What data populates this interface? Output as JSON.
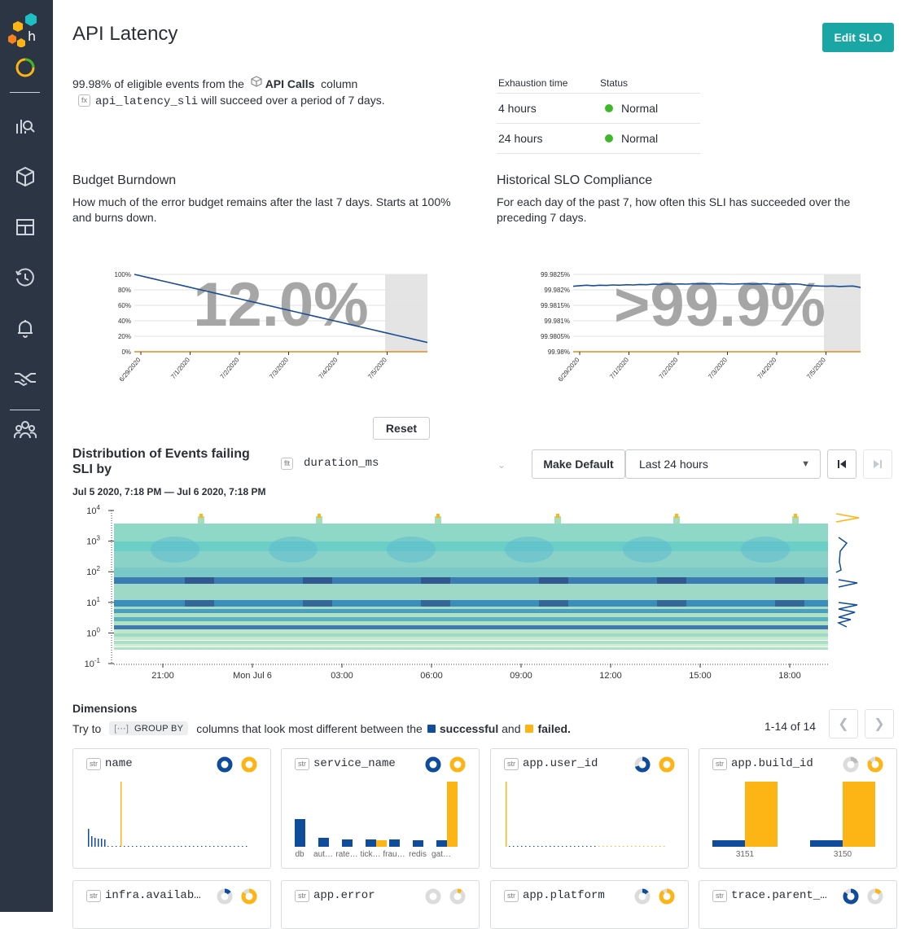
{
  "app": {
    "title": "API Latency",
    "edit_label": "Edit SLO"
  },
  "slo": {
    "pct": "99.98%",
    "text1": "of eligible events from the",
    "dataset": "API Calls",
    "text2": "column",
    "fx": "fx",
    "column": "api_latency_sli",
    "text3": "will succeed over a period of 7 days."
  },
  "exhaustion": {
    "col1": "Exhaustion time",
    "col2": "Status",
    "rows": [
      {
        "time": "4 hours",
        "status": "Normal"
      },
      {
        "time": "24 hours",
        "status": "Normal"
      }
    ],
    "status_color": "#3fb72a"
  },
  "burndown": {
    "title": "Budget Burndown",
    "desc": "How much of the error budget remains after the last 7 days. Starts at 100% and burns down."
  },
  "compliance": {
    "title": "Historical SLO Compliance",
    "desc": "For each day of the past 7, how often this SLI has succeeded over the preceding 7 days."
  },
  "chart_data": [
    {
      "type": "line",
      "big_value": "12.0%",
      "y_ticks": [
        "0%",
        "20%",
        "40%",
        "60%",
        "80%",
        "100%"
      ],
      "ylim": [
        0,
        100
      ],
      "x_ticks": [
        "6/29/2020",
        "7/1/2020",
        "7/2/2020",
        "7/3/2020",
        "7/4/2020",
        "7/5/2020"
      ],
      "series": [
        {
          "values": [
            100,
            98,
            96,
            94,
            92,
            90,
            88,
            86,
            84,
            82,
            80,
            78,
            76,
            74,
            72,
            70,
            68,
            66,
            64,
            62,
            60,
            58,
            56,
            54,
            52,
            50,
            48,
            46,
            44,
            42,
            40,
            38,
            36,
            34,
            32,
            30,
            28,
            26,
            24,
            22,
            20,
            18,
            16,
            14,
            12
          ]
        }
      ]
    },
    {
      "type": "line",
      "big_value": ">99.9%",
      "y_ticks": [
        "99.98%",
        "99.9805%",
        "99.981%",
        "99.9815%",
        "99.982%",
        "99.9825%"
      ],
      "ylim": [
        99.98,
        99.983
      ],
      "x_ticks": [
        "6/29/2020",
        "7/1/2020",
        "7/2/2020",
        "7/3/2020",
        "7/4/2020",
        "7/5/2020"
      ],
      "series": [
        {
          "values": [
            99.98254,
            99.98256,
            99.98258,
            99.98256,
            99.98258,
            99.98257,
            99.98259,
            99.98258,
            99.9826,
            99.98259,
            99.98261,
            99.9826,
            99.98262,
            99.98261,
            99.98263,
            99.98262,
            99.98263,
            99.98262,
            99.98264,
            99.98263,
            99.98264,
            99.98263,
            99.98264,
            99.98263,
            99.98262,
            99.98263,
            99.98264,
            99.98262,
            99.98263,
            99.98264,
            99.98262,
            99.98261,
            99.98262,
            99.98263,
            99.98262,
            99.98258,
            99.98256,
            99.98255,
            99.98254,
            99.98255,
            99.98253,
            99.98254,
            99.98255,
            99.9825,
            99.98244
          ]
        }
      ]
    },
    {
      "type": "heatmap",
      "y_ticks": [
        "10-1",
        "100",
        "101",
        "102",
        "103",
        "104"
      ],
      "x_ticks": [
        "21:00",
        "Mon Jul 6",
        "03:00",
        "06:00",
        "09:00",
        "12:00",
        "15:00",
        "18:00"
      ]
    }
  ],
  "reset_label": "Reset",
  "distribution": {
    "title": "Distribution of Events failing SLI by",
    "flt": "flt",
    "field": "duration_ms",
    "make_default": "Make Default",
    "range": "Last 24 hours",
    "date_range": "Jul 5 2020, 7:18 PM — Jul 6 2020, 7:18 PM"
  },
  "dimensions": {
    "title": "Dimensions",
    "try": "Try to",
    "group_by": "GROUP BY",
    "mid": "columns that look most different between the",
    "successful": "successful",
    "and": "and",
    "failed": "failed.",
    "pager": "1-14 of 14",
    "success_color": "#0f4c9c",
    "failed_color": "#fdb515",
    "cards": [
      {
        "type": "str",
        "name": "name",
        "labels": []
      },
      {
        "type": "str",
        "name": "service_name",
        "labels": [
          "db",
          "aut…",
          "rate…",
          "tick…",
          "frau…",
          "redis",
          "gat…"
        ]
      },
      {
        "type": "str",
        "name": "app.user_id",
        "labels": []
      },
      {
        "type": "str",
        "name": "app.build_id",
        "labels": [
          "3151",
          "3150"
        ]
      },
      {
        "type": "str",
        "name": "infra.availab…",
        "labels": []
      },
      {
        "type": "str",
        "name": "app.error",
        "labels": []
      },
      {
        "type": "str",
        "name": "app.platform",
        "labels": []
      },
      {
        "type": "str",
        "name": "trace.parent_…",
        "labels": []
      }
    ]
  }
}
